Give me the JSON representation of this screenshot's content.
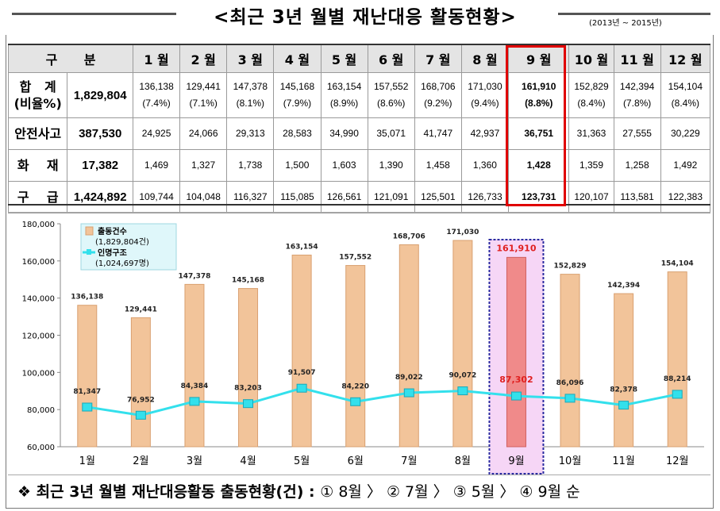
{
  "header": {
    "title": "<최근 3년 월별 재난대응 활동현황>",
    "period": "(2013년 ~ 2015년)"
  },
  "table": {
    "corner": "구      분",
    "months": [
      "1 월",
      "2 월",
      "3 월",
      "4 월",
      "5 월",
      "6 월",
      "7 월",
      "8 월",
      "9 월",
      "10 월",
      "11 월",
      "12 월"
    ],
    "highlight_index": 8,
    "rows": [
      {
        "label": "합   계",
        "label2": "(비율%)",
        "total": "1,829,804",
        "values": [
          "136,138",
          "129,441",
          "147,378",
          "145,168",
          "163,154",
          "157,552",
          "168,706",
          "171,030",
          "161,910",
          "152,829",
          "142,394",
          "154,104"
        ],
        "ratios": [
          "(7.4%)",
          "(7.1%)",
          "(8.1%)",
          "(7.9%)",
          "(8.9%)",
          "(8.6%)",
          "(9.2%)",
          "(9.4%)",
          "(8.8%)",
          "(8.4%)",
          "(7.8%)",
          "(8.4%)"
        ]
      },
      {
        "label": "안전사고",
        "total": "387,530",
        "values": [
          "24,925",
          "24,066",
          "29,313",
          "28,583",
          "34,990",
          "35,071",
          "41,747",
          "42,937",
          "36,751",
          "31,363",
          "27,555",
          "30,229"
        ]
      },
      {
        "label": "화    재",
        "total": "17,382",
        "values": [
          "1,469",
          "1,327",
          "1,738",
          "1,500",
          "1,603",
          "1,390",
          "1,458",
          "1,360",
          "1,428",
          "1,359",
          "1,258",
          "1,492"
        ]
      },
      {
        "label": "구    급",
        "total": "1,424,892",
        "values": [
          "109,744",
          "104,048",
          "116,327",
          "115,085",
          "126,561",
          "121,091",
          "125,501",
          "126,733",
          "123,731",
          "120,107",
          "113,581",
          "122,383"
        ]
      }
    ]
  },
  "chart_data": {
    "type": "bar",
    "categories": [
      "1월",
      "2월",
      "3월",
      "4월",
      "5월",
      "6월",
      "7월",
      "8월",
      "9월",
      "10월",
      "11월",
      "12월"
    ],
    "series": [
      {
        "name": "출동건수",
        "note": "(1,829,804건)",
        "type": "bar",
        "color": "#f2c49a",
        "values": [
          136138,
          129441,
          147378,
          145168,
          163154,
          157552,
          168706,
          171030,
          161910,
          152829,
          142394,
          154104
        ],
        "labels": [
          "136,138",
          "129,441",
          "147,378",
          "145,168",
          "163,154",
          "157,552",
          "168,706",
          "171,030",
          "161,910",
          "152,829",
          "142,394",
          "154,104"
        ]
      },
      {
        "name": "인명구조",
        "note": "(1,024,697명)",
        "type": "line",
        "color": "#33e0ec",
        "values": [
          81347,
          76952,
          84384,
          83203,
          91507,
          84220,
          89022,
          90072,
          87302,
          86096,
          82378,
          88214
        ],
        "labels": [
          "81,347",
          "76,952",
          "84,384",
          "83,203",
          "91,507",
          "84,220",
          "89,022",
          "90,072",
          "87,302",
          "86,096",
          "82,378",
          "88,214"
        ]
      }
    ],
    "highlight_index": 8,
    "highlight_color": "#ff0000",
    "ylim": [
      60000,
      180000
    ],
    "yticks": [
      "60,000",
      "80,000",
      "100,000",
      "120,000",
      "140,000",
      "160,000",
      "180,000"
    ],
    "grid": false,
    "legend": "top-left"
  },
  "footer": {
    "mark": "❖",
    "text": "최근 3년 월별 재난대응활동 출동현황(건) :",
    "ranks": "① 8월 〉 ② 7월 〉 ③ 5월 〉 ④ 9월 순"
  }
}
